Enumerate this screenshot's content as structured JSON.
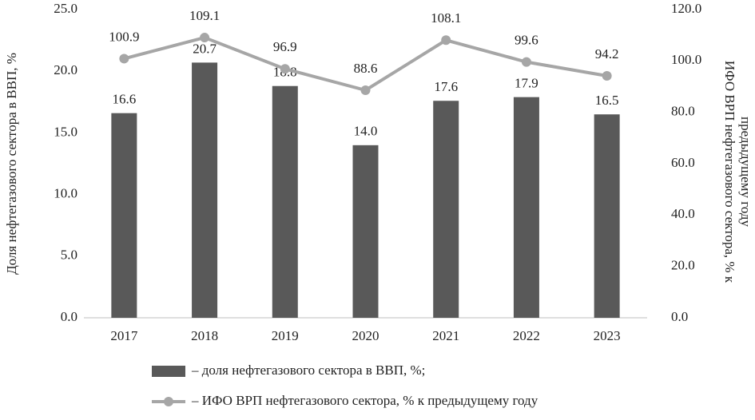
{
  "chart_data": {
    "type": "bar-line",
    "categories": [
      "2017",
      "2018",
      "2019",
      "2020",
      "2021",
      "2022",
      "2023"
    ],
    "series": [
      {
        "name": "– доля нефтегазового сектора в ВВП, %;",
        "type": "bar",
        "color": "#595959",
        "values": [
          16.6,
          20.7,
          18.8,
          14.0,
          17.6,
          17.9,
          16.5
        ],
        "value_labels": [
          "16.6",
          "20.7",
          "18.8",
          "14.0",
          "17.6",
          "17.9",
          "16.5"
        ]
      },
      {
        "name": "– ИФО ВРП нефтегазового сектора, % к предыдущему году",
        "type": "line",
        "axis": "y2",
        "color": "#a6a6a6",
        "values": [
          100.9,
          109.1,
          96.9,
          88.6,
          108.1,
          99.6,
          94.2
        ]
      }
    ],
    "ylabel": "Доля нефтегазового сектора в ВВП, %",
    "y2label": [
      "ИФО ВРП нефтегазового сектора, % к",
      "предыдущему году"
    ],
    "ylim": [
      0,
      25
    ],
    "yticks": [
      {
        "value": 0,
        "label": "0.0"
      },
      {
        "value": 5,
        "label": "5.0"
      },
      {
        "value": 10,
        "label": "10.0"
      },
      {
        "value": 15,
        "label": "15.0"
      },
      {
        "value": 20,
        "label": "20.0"
      },
      {
        "value": 25,
        "label": "25.0"
      }
    ],
    "y2lim": [
      0,
      120
    ],
    "y2ticks": [
      {
        "value": 0,
        "label": "0.0"
      },
      {
        "value": 20,
        "label": "20.0"
      },
      {
        "value": 40,
        "label": "40.0"
      },
      {
        "value": 60,
        "label": "60.0"
      },
      {
        "value": 80,
        "label": "80.0"
      },
      {
        "value": 100,
        "label": "100.0"
      },
      {
        "value": 120,
        "label": "120.0"
      }
    ],
    "grid": false,
    "legend": "bottom"
  }
}
